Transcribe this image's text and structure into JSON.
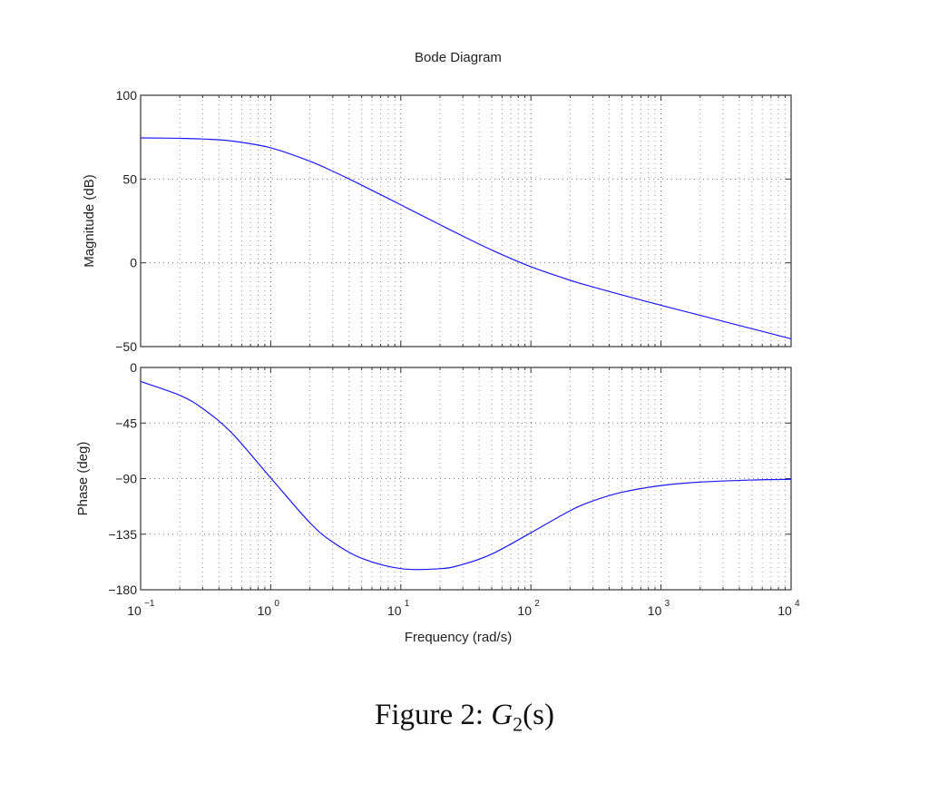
{
  "chart_data": [
    {
      "type": "line",
      "title": "Bode Diagram",
      "xlabel": "",
      "ylabel": "Magnitude (dB)",
      "xscale": "log",
      "xlim": [
        0.1,
        10000
      ],
      "ylim": [
        -50,
        100
      ],
      "yticks": [
        "100",
        "50",
        "0",
        "−50"
      ],
      "ytick_values": [
        100,
        50,
        0,
        -50
      ],
      "grid": true,
      "color": "#1a1aff",
      "x": [
        0.1,
        0.2,
        0.3,
        0.5,
        1,
        2,
        3,
        5,
        10,
        20,
        30,
        50,
        100,
        200,
        300,
        500,
        1000,
        2000,
        5000,
        10000
      ],
      "y": [
        74.56,
        74.31,
        73.9,
        72.71,
        68.63,
        60.67,
        54.65,
        46.36,
        34.61,
        22.76,
        15.93,
        7.66,
        -2.34,
        -10.4,
        -14.43,
        -19.16,
        -25.31,
        -31.36,
        -39.33,
        -45.35
      ]
    },
    {
      "type": "line",
      "xlabel": "Frequency  (rad/s)",
      "ylabel": "Phase (deg)",
      "xscale": "log",
      "xlim": [
        0.1,
        10000
      ],
      "ylim": [
        -180,
        0
      ],
      "yticks": [
        "0",
        "−45",
        "−90",
        "−135",
        "−180"
      ],
      "ytick_values": [
        0,
        -45,
        -90,
        -135,
        -180
      ],
      "xticks": [
        {
          "base": "10",
          "exp": "−1"
        },
        {
          "base": "10",
          "exp": "0"
        },
        {
          "base": "10",
          "exp": "1"
        },
        {
          "base": "10",
          "exp": "2"
        },
        {
          "base": "10",
          "exp": "3"
        },
        {
          "base": "10",
          "exp": "4"
        }
      ],
      "grid": true,
      "color": "#1a1aff",
      "x": [
        0.1,
        0.2,
        0.3,
        0.5,
        1,
        2,
        3,
        5,
        10,
        20,
        30,
        50,
        100,
        200,
        300,
        500,
        1000,
        2000,
        5000,
        10000
      ],
      "y": [
        -11.36,
        -22.51,
        -33.23,
        -52.85,
        -89.43,
        -125.72,
        -141.42,
        -154.52,
        -162.87,
        -162.97,
        -159.48,
        -151.14,
        -133.85,
        -115.99,
        -108.05,
        -101.08,
        -95.6,
        -92.8,
        -91.13,
        -90.56
      ]
    }
  ],
  "caption": {
    "prefix": "Figure 2:  ",
    "symbol": "G",
    "subscript": "2",
    "arg": "(s)"
  }
}
